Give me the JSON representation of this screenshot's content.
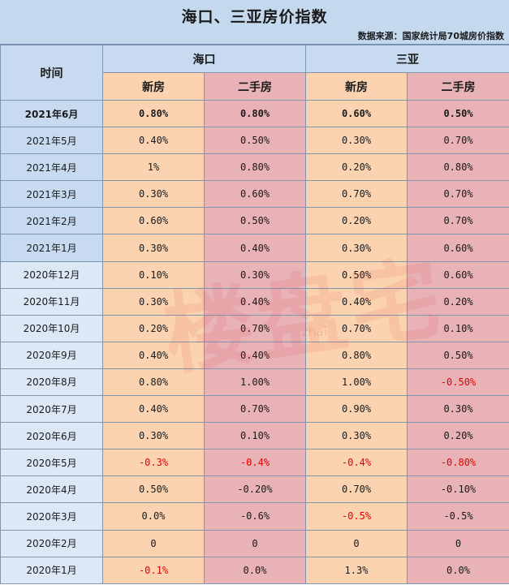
{
  "title": "海口、三亚房价指数",
  "source": "数据来源：国家统计局70城房价指数",
  "header": {
    "time": "时间",
    "cities": [
      "海口",
      "三亚"
    ],
    "new_label": "新房",
    "used_label": "二手房"
  },
  "watermark": {
    "main": "楼盘宅",
    "sub": "zhai"
  },
  "colors": {
    "time_header": "#c7daf0",
    "new_col": "#fbd3b0",
    "used_col": "#e8b2b6",
    "negative": "#e60000"
  },
  "rows": [
    {
      "month": "2021年6月",
      "haikou_new": "0.80%",
      "haikou_used": "0.80%",
      "sanya_new": "0.60%",
      "sanya_used": "0.50%"
    },
    {
      "month": "2021年5月",
      "haikou_new": "0.40%",
      "haikou_used": "0.50%",
      "sanya_new": "0.30%",
      "sanya_used": "0.70%"
    },
    {
      "month": "2021年4月",
      "haikou_new": "1%",
      "haikou_used": "0.80%",
      "sanya_new": "0.20%",
      "sanya_used": "0.80%"
    },
    {
      "month": "2021年3月",
      "haikou_new": "0.30%",
      "haikou_used": "0.60%",
      "sanya_new": "0.70%",
      "sanya_used": "0.70%"
    },
    {
      "month": "2021年2月",
      "haikou_new": "0.60%",
      "haikou_used": "0.50%",
      "sanya_new": "0.20%",
      "sanya_used": "0.70%"
    },
    {
      "month": "2021年1月",
      "haikou_new": "0.30%",
      "haikou_used": "0.40%",
      "sanya_new": "0.30%",
      "sanya_used": "0.60%"
    },
    {
      "month": "2020年12月",
      "haikou_new": "0.10%",
      "haikou_used": "0.30%",
      "sanya_new": "0.50%",
      "sanya_used": "0.60%"
    },
    {
      "month": "2020年11月",
      "haikou_new": "0.30%",
      "haikou_used": "0.40%",
      "sanya_new": "0.40%",
      "sanya_used": "0.20%"
    },
    {
      "month": "2020年10月",
      "haikou_new": "0.20%",
      "haikou_used": "0.70%",
      "sanya_new": "0.70%",
      "sanya_used": "0.10%"
    },
    {
      "month": "2020年9月",
      "haikou_new": "0.40%",
      "haikou_used": "0.40%",
      "sanya_new": "0.80%",
      "sanya_used": "0.50%"
    },
    {
      "month": "2020年8月",
      "haikou_new": "0.80%",
      "haikou_used": "1.00%",
      "sanya_new": "1.00%",
      "sanya_used": "-0.50%"
    },
    {
      "month": "2020年7月",
      "haikou_new": "0.40%",
      "haikou_used": "0.70%",
      "sanya_new": "0.90%",
      "sanya_used": "0.30%"
    },
    {
      "month": "2020年6月",
      "haikou_new": "0.30%",
      "haikou_used": "0.10%",
      "sanya_new": "0.30%",
      "sanya_used": "0.20%"
    },
    {
      "month": "2020年5月",
      "haikou_new": "-0.3%",
      "haikou_used": "-0.4%",
      "sanya_new": "-0.4%",
      "sanya_used": "-0.80%"
    },
    {
      "month": "2020年4月",
      "haikou_new": "0.50%",
      "haikou_used": "-0.20%",
      "sanya_new": "0.70%",
      "sanya_used": "-0.10%"
    },
    {
      "month": "2020年3月",
      "haikou_new": "0.0%",
      "haikou_used": "-0.6%",
      "sanya_new": "-0.5%",
      "sanya_used": "-0.5%"
    },
    {
      "month": "2020年2月",
      "haikou_new": "0",
      "haikou_used": "0",
      "sanya_new": "0",
      "sanya_used": "0"
    },
    {
      "month": "2020年1月",
      "haikou_new": "-0.1%",
      "haikou_used": "0.0%",
      "sanya_new": "1.3%",
      "sanya_used": "0.0%"
    }
  ],
  "red_cells": [
    [
      10,
      "sanya_used"
    ],
    [
      13,
      "haikou_new"
    ],
    [
      13,
      "haikou_used"
    ],
    [
      13,
      "sanya_new"
    ],
    [
      13,
      "sanya_used"
    ],
    [
      15,
      "sanya_new"
    ],
    [
      17,
      "haikou_new"
    ]
  ]
}
